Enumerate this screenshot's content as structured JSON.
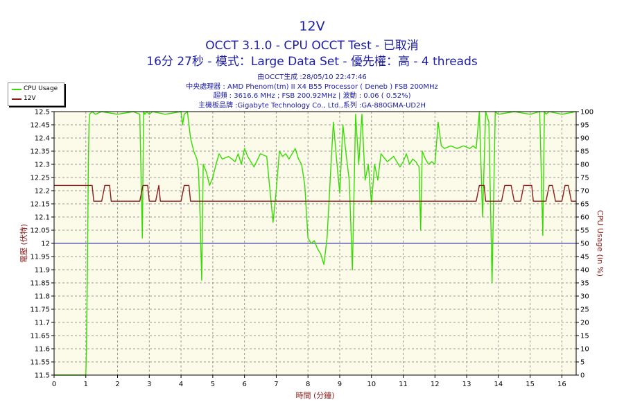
{
  "header": {
    "title": "12V",
    "subtitle1": "OCCT 3.1.0 - CPU OCCT Test - 已取消",
    "subtitle2": "16分 27秒 - 模式：Large Data Set - 優先權：高 - 4 threads",
    "info1": "由OCCT生成 :28/05/10 22:47:46",
    "info2": "中央處理器 : AMD Phenom(tm) II X4 B55 Processor ( Deneb ) FSB 200MHz",
    "info3": "超頻 : 3616.6 MHz ; FSB 200.92MHz | 波動 : 0.06 ( 0.52%)",
    "info4": "主機板品牌 :Gigabyte Technology Co., Ltd.,系列 :GA-880GMA-UD2H"
  },
  "legend": [
    {
      "name": "CPU Usage",
      "color": "#33dd00"
    },
    {
      "name": "12V",
      "color": "#8b1a1a"
    }
  ],
  "chart_data": {
    "type": "line",
    "xlabel": "時間 (分鐘)",
    "ylabel": "電壓 (伏特)",
    "y2label": "CPU Usage (in %)",
    "xlim": [
      0,
      16.45
    ],
    "ylim": [
      11.5,
      12.5
    ],
    "y2lim": [
      0,
      100
    ],
    "x_ticks": [
      0,
      1,
      2,
      3,
      4,
      5,
      6,
      7,
      8,
      9,
      10,
      11,
      12,
      13,
      14,
      15,
      16
    ],
    "y_ticks": [
      "11.5",
      "11.55",
      "11.6",
      "11.65",
      "11.7",
      "11.75",
      "11.8",
      "11.85",
      "11.9",
      "11.95",
      "12",
      "12.05",
      "12.1",
      "12.15",
      "12.2",
      "12.25",
      "12.3",
      "12.35",
      "12.4",
      "12.45",
      "12.5"
    ],
    "y2_ticks": [
      0,
      5,
      10,
      15,
      20,
      25,
      30,
      35,
      40,
      45,
      50,
      55,
      60,
      65,
      70,
      75,
      80,
      85,
      90,
      95,
      100
    ],
    "reference_line": 12.0,
    "grid": true,
    "series": [
      {
        "name": "12V",
        "axis": "left",
        "color": "#8b1a1a",
        "x": [
          0,
          1.2,
          1.25,
          1.5,
          1.6,
          1.75,
          1.8,
          2.7,
          2.8,
          2.95,
          3.0,
          3.2,
          3.3,
          3.35,
          4.0,
          4.1,
          4.25,
          4.3,
          13.3,
          13.4,
          13.55,
          13.6,
          14.1,
          14.2,
          14.4,
          14.5,
          14.7,
          14.8,
          15.05,
          15.1,
          15.5,
          15.6,
          15.7,
          15.8,
          16.0,
          16.1,
          16.2,
          16.3,
          16.45
        ],
        "y": [
          12.22,
          12.22,
          12.16,
          12.16,
          12.22,
          12.22,
          12.16,
          12.16,
          12.22,
          12.22,
          12.16,
          12.16,
          12.22,
          12.16,
          12.16,
          12.22,
          12.22,
          12.16,
          12.16,
          12.22,
          12.22,
          12.16,
          12.16,
          12.22,
          12.22,
          12.16,
          12.16,
          12.22,
          12.22,
          12.16,
          12.16,
          12.22,
          12.22,
          12.16,
          12.16,
          12.22,
          12.22,
          12.16,
          12.16
        ]
      },
      {
        "name": "CPU Usage",
        "axis": "right",
        "color": "#33dd00",
        "x": [
          0,
          1.0,
          1.02,
          1.05,
          1.08,
          1.1,
          1.12,
          1.2,
          1.3,
          1.5,
          2.0,
          2.5,
          2.7,
          2.78,
          2.82,
          2.86,
          2.92,
          3.0,
          3.1,
          3.5,
          4.0,
          4.05,
          4.1,
          4.2,
          4.3,
          4.4,
          4.5,
          4.55,
          4.6,
          4.65,
          4.7,
          4.8,
          4.9,
          5.0,
          5.1,
          5.2,
          5.3,
          5.5,
          5.7,
          5.8,
          5.9,
          6.0,
          6.1,
          6.3,
          6.5,
          6.7,
          6.9,
          7.0,
          7.1,
          7.2,
          7.3,
          7.4,
          7.5,
          7.6,
          7.7,
          7.8,
          7.9,
          8.0,
          8.1,
          8.2,
          8.3,
          8.4,
          8.5,
          8.6,
          8.7,
          8.8,
          8.9,
          9.0,
          9.1,
          9.2,
          9.3,
          9.4,
          9.5,
          9.6,
          9.7,
          9.8,
          9.9,
          10.0,
          10.1,
          10.2,
          10.3,
          10.5,
          10.7,
          10.9,
          11.0,
          11.1,
          11.2,
          11.3,
          11.4,
          11.5,
          11.55,
          11.6,
          11.7,
          11.8,
          11.9,
          12.0,
          12.1,
          12.2,
          12.3,
          12.5,
          12.7,
          12.9,
          13.1,
          13.2,
          13.3,
          13.4,
          13.5,
          13.6,
          13.7,
          13.8,
          13.9,
          14.0,
          14.5,
          15.0,
          15.3,
          15.4,
          15.45,
          15.5,
          15.6,
          16.0,
          16.45
        ],
        "y": [
          0,
          0,
          10,
          40,
          80,
          95,
          99,
          100,
          99,
          100,
          99,
          100,
          99,
          52,
          100,
          99,
          100,
          99,
          100,
          99,
          100,
          95,
          99,
          100,
          90,
          85,
          82,
          78,
          60,
          36,
          80,
          77,
          72,
          75,
          80,
          84,
          82,
          83,
          81,
          84,
          80,
          86,
          83,
          79,
          84,
          83,
          58,
          70,
          85,
          83,
          84,
          82,
          84,
          86,
          82,
          80,
          72,
          52,
          50,
          51,
          48,
          46,
          42,
          52,
          74,
          96,
          82,
          69,
          95,
          84,
          74,
          40,
          99,
          80,
          99,
          74,
          80,
          65,
          80,
          74,
          84,
          81,
          83,
          79,
          81,
          84,
          80,
          82,
          81,
          79,
          55,
          85,
          82,
          80,
          81,
          80,
          96,
          87,
          86,
          87,
          86,
          87,
          86,
          87,
          86,
          100,
          60,
          100,
          96,
          35,
          100,
          99,
          100,
          99,
          100,
          53,
          100,
          99,
          100,
          99,
          100
        ]
      }
    ]
  }
}
